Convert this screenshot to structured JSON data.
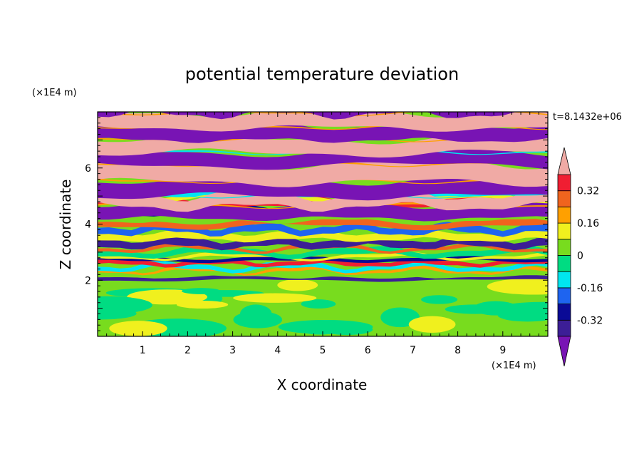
{
  "chart_data": {
    "type": "heatmap",
    "title": "potential temperature deviation",
    "xlabel": "X coordinate",
    "ylabel": "Z coordinate",
    "x_unit": "(×1E4 m)",
    "y_unit": "(×1E4 m)",
    "time_label": "t=8.1432e+06",
    "xlim": [
      0,
      10
    ],
    "ylim": [
      0,
      8
    ],
    "x_ticks": [
      1,
      2,
      3,
      4,
      5,
      6,
      7,
      8,
      9
    ],
    "y_ticks": [
      2,
      4,
      6
    ],
    "colorbar": {
      "levels": [
        -0.4,
        -0.32,
        -0.24,
        -0.16,
        -0.08,
        0,
        0.08,
        0.16,
        0.24,
        0.32,
        0.4
      ],
      "labels": [
        "0.32",
        "0.16",
        "0",
        "-0.16",
        "-0.32"
      ],
      "label_values": [
        0.32,
        0.16,
        0,
        -0.16,
        -0.32
      ],
      "colors": [
        "#3c1e96",
        "#0a0a96",
        "#1e64f0",
        "#00e6f0",
        "#00dc82",
        "#78dc1e",
        "#f0f01e",
        "#ffa000",
        "#f0641e",
        "#f01e32"
      ],
      "under_color": "#7814b4",
      "over_color": "#f0aaa5"
    }
  }
}
